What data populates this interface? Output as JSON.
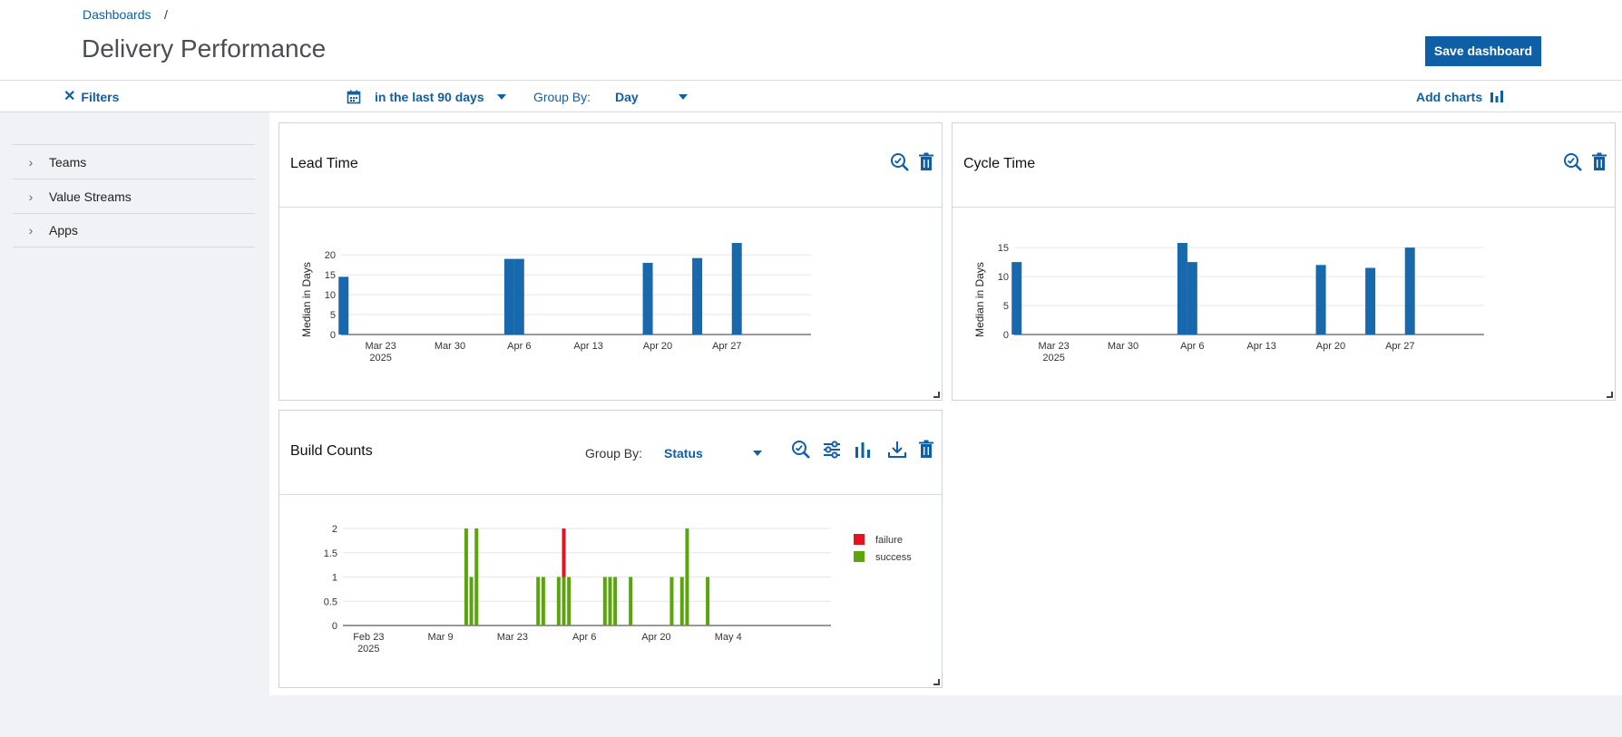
{
  "header": {
    "breadcrumb": "Dashboards",
    "breadcrumb_sep": "/",
    "title": "Delivery Performance",
    "save_label": "Save dashboard"
  },
  "toolbar": {
    "filters_label": "Filters",
    "date_range": "in the last 90 days",
    "group_by_label": "Group By:",
    "group_by_value": "Day",
    "add_charts_label": "Add charts"
  },
  "sidebar": {
    "items": [
      {
        "label": "Teams"
      },
      {
        "label": "Value Streams"
      },
      {
        "label": "Apps"
      }
    ]
  },
  "colors": {
    "accent": "#0f5fa6",
    "bar": "#1868ae",
    "failure": "#e3141f",
    "success": "#5aa50a"
  },
  "panels": {
    "lead_time": {
      "title": "Lead Time"
    },
    "cycle_time": {
      "title": "Cycle Time"
    },
    "build_counts": {
      "title": "Build Counts",
      "group_by_label": "Group By:",
      "group_by_value": "Status"
    }
  },
  "chart_data": [
    {
      "type": "bar",
      "title": "Lead Time",
      "ylabel": "Median in Days",
      "xlabel": "",
      "ylim": [
        0,
        23
      ],
      "yticks": [
        0,
        5,
        10,
        15,
        20
      ],
      "x_start_day": 0,
      "x_end_day": 47.5,
      "x_ticks": [
        {
          "day": 4,
          "label": "Mar 23",
          "sub": "2025"
        },
        {
          "day": 11,
          "label": "Mar 30"
        },
        {
          "day": 18,
          "label": "Apr 6"
        },
        {
          "day": 25,
          "label": "Apr 13"
        },
        {
          "day": 32,
          "label": "Apr 20"
        },
        {
          "day": 39,
          "label": "Apr 27"
        }
      ],
      "points": [
        {
          "date": "Mar 19",
          "day": 0.25,
          "value": 14.5
        },
        {
          "date": "Apr 5",
          "day": 17,
          "value": 19
        },
        {
          "date": "Apr 6",
          "day": 18,
          "value": 19
        },
        {
          "date": "Apr 19",
          "day": 31,
          "value": 18
        },
        {
          "date": "Apr 24",
          "day": 36,
          "value": 19.2
        },
        {
          "date": "Apr 28",
          "day": 40,
          "value": 23
        }
      ]
    },
    {
      "type": "bar",
      "title": "Cycle Time",
      "ylabel": "Median in Days",
      "xlabel": "",
      "ylim": [
        0,
        15.8
      ],
      "yticks": [
        0,
        5,
        10,
        15
      ],
      "x_start_day": 0,
      "x_end_day": 47.5,
      "x_ticks": [
        {
          "day": 4,
          "label": "Mar 23",
          "sub": "2025"
        },
        {
          "day": 11,
          "label": "Mar 30"
        },
        {
          "day": 18,
          "label": "Apr 6"
        },
        {
          "day": 25,
          "label": "Apr 13"
        },
        {
          "day": 32,
          "label": "Apr 20"
        },
        {
          "day": 39,
          "label": "Apr 27"
        }
      ],
      "points": [
        {
          "date": "Mar 19",
          "day": 0.25,
          "value": 12.5
        },
        {
          "date": "Apr 5",
          "day": 17,
          "value": 15.8
        },
        {
          "date": "Apr 6",
          "day": 18,
          "value": 12.5
        },
        {
          "date": "Apr 19",
          "day": 31,
          "value": 12
        },
        {
          "date": "Apr 24",
          "day": 36,
          "value": 11.5
        },
        {
          "date": "Apr 28",
          "day": 40,
          "value": 15
        }
      ]
    },
    {
      "type": "bar",
      "stacked": true,
      "title": "Build Counts",
      "xlabel": "",
      "ylabel": "",
      "ylim": [
        0,
        2
      ],
      "yticks": [
        0,
        0.5,
        1,
        1.5,
        2
      ],
      "ytick_labels": [
        "0",
        "0.5",
        "1",
        "1.5",
        "2"
      ],
      "x_start_day": 0,
      "x_end_day": 95,
      "x_ticks": [
        {
          "day": 5,
          "label": "Feb 23",
          "sub": "2025"
        },
        {
          "day": 19,
          "label": "Mar 9"
        },
        {
          "day": 33,
          "label": "Mar 23"
        },
        {
          "day": 47,
          "label": "Apr 6"
        },
        {
          "day": 61,
          "label": "Apr 20"
        },
        {
          "day": 75,
          "label": "May 4"
        }
      ],
      "legend": [
        {
          "name": "failure",
          "color": "#e3141f"
        },
        {
          "name": "success",
          "color": "#5aa50a"
        }
      ],
      "series": [
        {
          "name": "success",
          "color": "#5aa50a",
          "points": [
            {
              "day": 24,
              "value": 2
            },
            {
              "day": 25,
              "value": 1
            },
            {
              "day": 26,
              "value": 2
            },
            {
              "day": 38,
              "value": 1
            },
            {
              "day": 39,
              "value": 1
            },
            {
              "day": 42,
              "value": 1
            },
            {
              "day": 43,
              "value": 1
            },
            {
              "day": 44,
              "value": 1
            },
            {
              "day": 51,
              "value": 1
            },
            {
              "day": 52,
              "value": 1
            },
            {
              "day": 53,
              "value": 1
            },
            {
              "day": 56,
              "value": 1
            },
            {
              "day": 64,
              "value": 1
            },
            {
              "day": 66,
              "value": 1
            },
            {
              "day": 67,
              "value": 2
            },
            {
              "day": 71,
              "value": 1
            }
          ]
        },
        {
          "name": "failure",
          "color": "#e3141f",
          "points": [
            {
              "day": 43,
              "value": 1
            }
          ]
        }
      ]
    }
  ]
}
